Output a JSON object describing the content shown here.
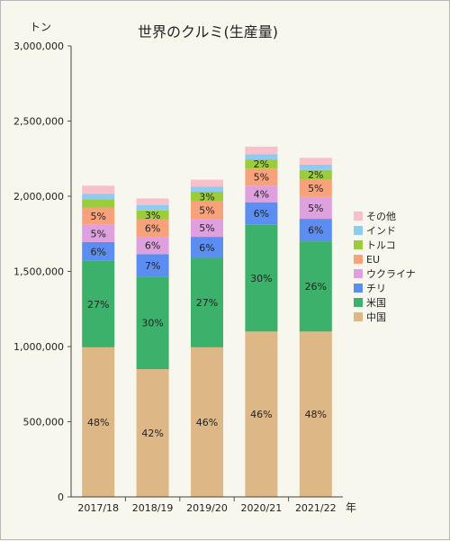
{
  "chart_data": {
    "type": "bar",
    "stacked": true,
    "title": "世界のクルミ(生産量)",
    "ylabel": "トン",
    "xlabel": "年",
    "ylim": [
      0,
      3000000
    ],
    "yticks": [
      0,
      500000,
      1000000,
      1500000,
      2000000,
      2500000,
      3000000
    ],
    "ytick_labels": [
      "0",
      "500,000",
      "1,000,000",
      "1,500,000",
      "2,000,000",
      "2,500,000",
      "3,000,000"
    ],
    "categories": [
      "2017/18",
      "2018/19",
      "2019/20",
      "2020/21",
      "2021/22"
    ],
    "grid": false,
    "legend_position": "right",
    "series": [
      {
        "name": "中国",
        "color": "#ddb886",
        "values": [
          995000,
          850000,
          995000,
          1100000,
          1100000
        ],
        "labels": [
          "48%",
          "42%",
          "46%",
          "46%",
          "48%"
        ]
      },
      {
        "name": "米国",
        "color": "#3bb16b",
        "values": [
          575000,
          615000,
          595000,
          710000,
          600000
        ],
        "labels": [
          "27%",
          "30%",
          "27%",
          "30%",
          "26%"
        ]
      },
      {
        "name": "チリ",
        "color": "#5b8ef0",
        "values": [
          125000,
          150000,
          140000,
          150000,
          150000
        ],
        "labels": [
          "6%",
          "7%",
          "6%",
          "6%",
          "6%"
        ]
      },
      {
        "name": "ウクライナ",
        "color": "#dfa0df",
        "values": [
          115000,
          115000,
          120000,
          110000,
          145000
        ],
        "labels": [
          "5%",
          "6%",
          "5%",
          "4%",
          "5%"
        ]
      },
      {
        "name": "EU",
        "color": "#f8a27b",
        "values": [
          115000,
          115000,
          115000,
          115000,
          115000
        ],
        "labels": [
          "5%",
          "6%",
          "5%",
          "5%",
          "5%"
        ]
      },
      {
        "name": "トルコ",
        "color": "#9ccc3a",
        "values": [
          55000,
          60000,
          65000,
          60000,
          65000
        ],
        "labels": [
          "",
          "3%",
          "3%",
          "2%",
          "2%"
        ]
      },
      {
        "name": "インド",
        "color": "#8dcbf0",
        "values": [
          35000,
          35000,
          35000,
          35000,
          35000
        ],
        "labels": [
          "",
          "",
          "",
          "",
          ""
        ]
      },
      {
        "name": "その他",
        "color": "#f7c0cb",
        "values": [
          55000,
          45000,
          45000,
          50000,
          45000
        ],
        "labels": [
          "",
          "",
          "",
          "",
          ""
        ]
      }
    ]
  }
}
